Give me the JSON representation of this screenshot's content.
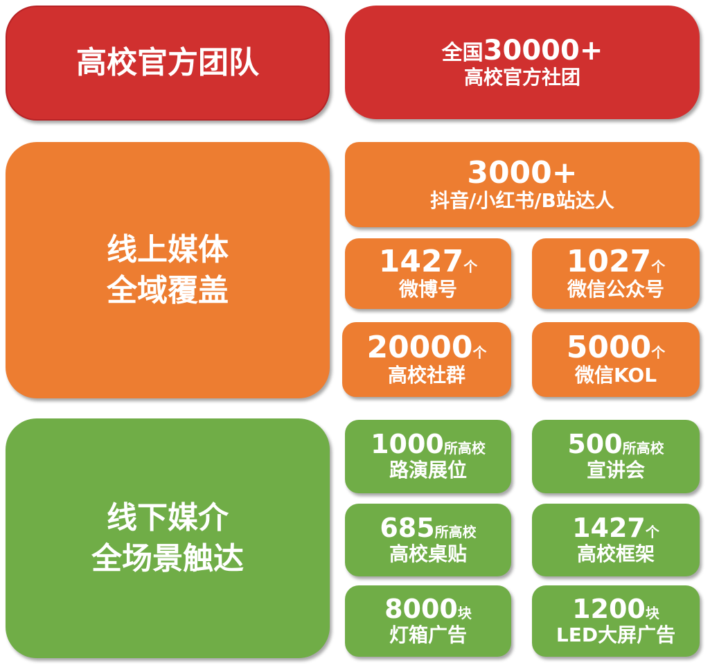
{
  "colors": {
    "red": "#d0302f",
    "orange": "#ed7d31",
    "green": "#70ad47"
  },
  "team": {
    "title": "高校官方团队",
    "stat_prefix": "全国",
    "stat_value": "30000+",
    "stat_label": "高校官方社团"
  },
  "online": {
    "title_line1": "线上媒体",
    "title_line2": "全域覆盖",
    "top": {
      "value": "3000+",
      "label": "抖音/小红书/B站达人"
    },
    "items": [
      {
        "value": "1427",
        "unit": "个",
        "label": "微博号"
      },
      {
        "value": "1027",
        "unit": "个",
        "label": "微信公众号"
      },
      {
        "value": "20000",
        "unit": "个",
        "label": "高校社群"
      },
      {
        "value": "5000",
        "unit": "个",
        "label": "微信KOL"
      }
    ]
  },
  "offline": {
    "title_line1": "线下媒介",
    "title_line2": "全场景触达",
    "items": [
      {
        "value": "1000",
        "unit": "所高校",
        "label": "路演展位"
      },
      {
        "value": "500",
        "unit": "所高校",
        "label": "宣讲会"
      },
      {
        "value": "685",
        "unit": "所高校",
        "label": "高校桌贴"
      },
      {
        "value": "1427",
        "unit": "个",
        "label": "高校框架"
      },
      {
        "value": "8000",
        "unit": "块",
        "label": "灯箱广告"
      },
      {
        "value": "1200",
        "unit": "块",
        "label": "LED大屏广告"
      }
    ]
  }
}
